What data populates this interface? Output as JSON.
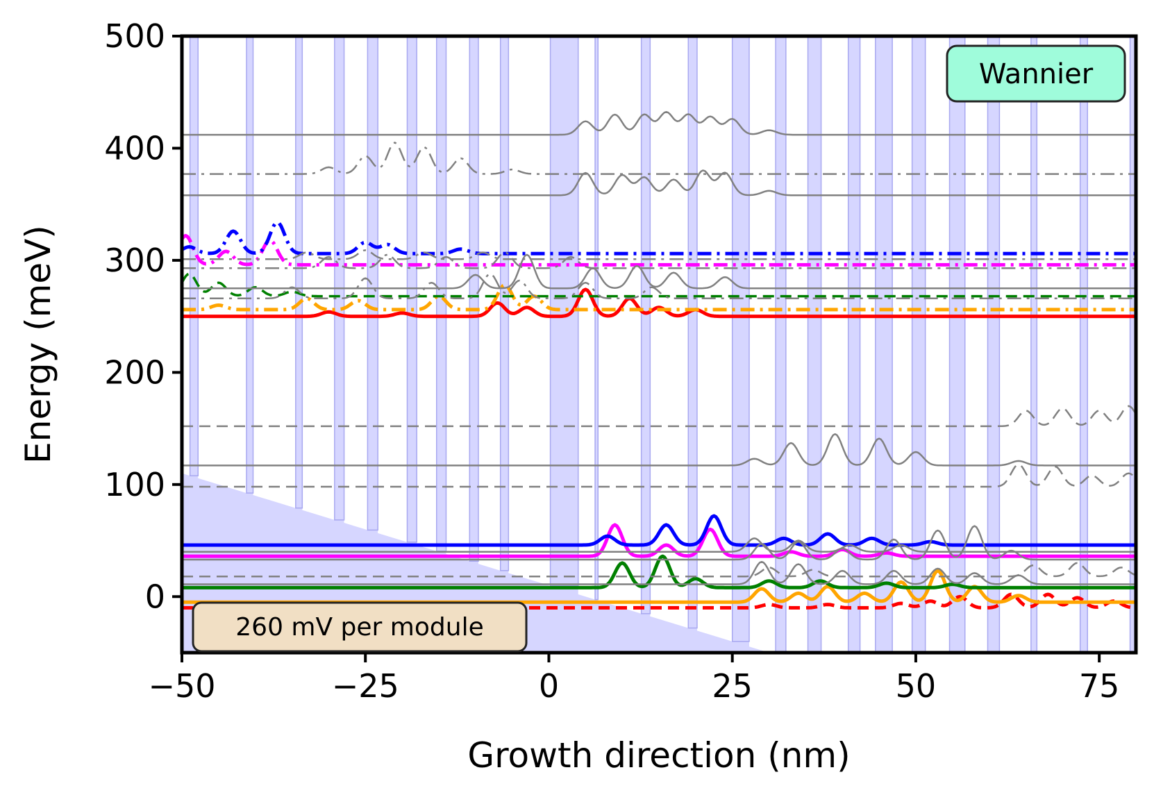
{
  "chart_data": {
    "type": "line",
    "title": "",
    "xlabel": "Growth direction (nm)",
    "ylabel": "Energy (meV)",
    "xlim": [
      -50,
      80
    ],
    "ylim": [
      -50,
      500
    ],
    "xticks": [
      -50,
      -25,
      0,
      25,
      50,
      75
    ],
    "yticks": [
      0,
      100,
      200,
      300,
      400,
      500
    ],
    "xtick_labels": [
      "−50",
      "−25",
      "0",
      "25",
      "50",
      "75"
    ],
    "ytick_labels": [
      "0",
      "100",
      "200",
      "300",
      "400",
      "500"
    ],
    "grid": false,
    "potential_profile": {
      "color": "#d6d6ff",
      "edge_color": "#a8a8f0",
      "field_meV_per_nm": -2.0,
      "barrier_height_meV": 60,
      "barriers": [
        [
          -48.9,
          -47.8
        ],
        [
          -41.2,
          -40.3
        ],
        [
          -34.5,
          -33.6
        ],
        [
          -29.2,
          -27.9
        ],
        [
          -24.7,
          -23.3
        ],
        [
          -19.3,
          -18.0
        ],
        [
          -15.3,
          -14.0
        ],
        [
          -10.8,
          -9.6
        ],
        [
          -6.6,
          -5.5
        ],
        [
          0.2,
          4.0
        ],
        [
          6.3,
          6.7
        ],
        [
          12.6,
          13.8
        ],
        [
          19.0,
          20.2
        ],
        [
          25.0,
          27.3
        ],
        [
          30.9,
          32.3
        ],
        [
          35.3,
          37.1
        ],
        [
          40.8,
          42.4
        ],
        [
          44.5,
          46.8
        ],
        [
          49.5,
          51.3
        ],
        [
          54.6,
          56.7
        ],
        [
          59.8,
          61.4
        ],
        [
          65.7,
          66.5
        ],
        [
          72.4,
          73.4
        ],
        [
          79.2,
          80
        ]
      ]
    },
    "series": [
      {
        "name": "red-lower",
        "color": "#ff0000",
        "style": "dashed",
        "width": 5,
        "level": -10,
        "lobes": [
          [
            30,
            3
          ],
          [
            38,
            3
          ],
          [
            48,
            4
          ],
          [
            52,
            6
          ],
          [
            56,
            10
          ],
          [
            63,
            12
          ],
          [
            68,
            12
          ],
          [
            72,
            9
          ],
          [
            77,
            6
          ]
        ]
      },
      {
        "name": "orange-lower",
        "color": "#ffa500",
        "style": "solid",
        "width": 5,
        "level": -5,
        "lobes": [
          [
            29,
            12
          ],
          [
            34,
            8
          ],
          [
            38,
            14
          ],
          [
            43,
            8
          ],
          [
            48,
            18
          ],
          [
            53,
            28
          ],
          [
            58,
            14
          ],
          [
            64,
            6
          ]
        ]
      },
      {
        "name": "green-lower",
        "color": "#008000",
        "style": "solid",
        "width": 5,
        "level": 8,
        "lobes": [
          [
            10,
            22
          ],
          [
            15.5,
            28
          ],
          [
            20,
            8
          ],
          [
            30,
            6
          ],
          [
            37,
            6
          ],
          [
            46,
            4
          ],
          [
            55,
            3
          ]
        ]
      },
      {
        "name": "magenta-lower",
        "color": "#ff00ff",
        "style": "solid",
        "width": 5,
        "level": 36,
        "lobes": [
          [
            9,
            28
          ],
          [
            16,
            10
          ],
          [
            22,
            24
          ],
          [
            33,
            4
          ],
          [
            40,
            6
          ],
          [
            46,
            3
          ]
        ]
      },
      {
        "name": "blue-lower",
        "color": "#0000ff",
        "style": "solid",
        "width": 5,
        "level": 46,
        "lobes": [
          [
            8,
            8
          ],
          [
            16,
            18
          ],
          [
            22.5,
            26
          ],
          [
            32,
            6
          ],
          [
            38,
            10
          ],
          [
            44,
            6
          ],
          [
            52,
            3
          ]
        ]
      },
      {
        "name": "gray-low-1",
        "color": "#808080",
        "style": "solid",
        "width": 2.5,
        "level": 11,
        "lobes": [
          [
            29,
            20
          ],
          [
            34,
            18
          ],
          [
            40,
            12
          ],
          [
            47,
            12
          ],
          [
            53,
            14
          ],
          [
            58,
            10
          ],
          [
            64,
            8
          ]
        ]
      },
      {
        "name": "gray-low-2",
        "color": "#808080",
        "style": "dashed",
        "width": 2.5,
        "level": 18,
        "lobes": [
          [
            30,
            8
          ],
          [
            36,
            6
          ],
          [
            66,
            10
          ],
          [
            72,
            12
          ],
          [
            78,
            8
          ]
        ]
      },
      {
        "name": "gray-low-3",
        "color": "#808080",
        "style": "solid",
        "width": 2.5,
        "level": 33,
        "lobes": [
          [
            29,
            14
          ],
          [
            34,
            16
          ],
          [
            40,
            10
          ],
          [
            47,
            18
          ],
          [
            53,
            26
          ],
          [
            58,
            30
          ],
          [
            63,
            8
          ]
        ]
      },
      {
        "name": "gray-low-4",
        "color": "#808080",
        "style": "solid",
        "width": 2.5,
        "level": 40,
        "lobes": [
          [
            28,
            12
          ],
          [
            34,
            10
          ],
          [
            41,
            6
          ],
          [
            48,
            6
          ]
        ]
      },
      {
        "name": "gray-mid-1",
        "color": "#808080",
        "style": "dashed",
        "width": 2.5,
        "level": 98,
        "lobes": [
          [
            64,
            20
          ],
          [
            69,
            18
          ],
          [
            74,
            10
          ],
          [
            79,
            12
          ]
        ]
      },
      {
        "name": "gray-mid-2",
        "color": "#808080",
        "style": "solid",
        "width": 2.5,
        "level": 117,
        "lobes": [
          [
            28,
            6
          ],
          [
            33,
            20
          ],
          [
            39,
            28
          ],
          [
            45,
            24
          ],
          [
            50,
            12
          ],
          [
            64,
            4
          ]
        ]
      },
      {
        "name": "gray-mid-3",
        "color": "#808080",
        "style": "dashed",
        "width": 2.5,
        "level": 152,
        "lobes": [
          [
            65,
            14
          ],
          [
            70,
            16
          ],
          [
            75,
            14
          ],
          [
            79,
            18
          ]
        ]
      },
      {
        "name": "red-upper",
        "color": "#ff0000",
        "style": "solid",
        "width": 5,
        "level": 250,
        "lobes": [
          [
            -30,
            4
          ],
          [
            -20,
            3
          ],
          [
            -7,
            12
          ],
          [
            -3,
            8
          ],
          [
            5,
            24
          ],
          [
            11,
            16
          ],
          [
            15,
            8
          ],
          [
            20,
            6
          ]
        ]
      },
      {
        "name": "orange-upper",
        "color": "#ffa500",
        "style": "dashdot",
        "width": 5,
        "level": 256,
        "lobes": [
          [
            -45,
            4
          ],
          [
            -33,
            10
          ],
          [
            -26,
            8
          ],
          [
            -15,
            12
          ],
          [
            -6,
            22
          ],
          [
            -2,
            12
          ]
        ]
      },
      {
        "name": "green-upper",
        "color": "#008000",
        "style": "dashed",
        "width": 3.5,
        "level": 268,
        "lobes": [
          [
            -49,
            20
          ],
          [
            -45,
            12
          ],
          [
            -40,
            8
          ],
          [
            -35,
            4
          ]
        ]
      },
      {
        "name": "magenta-upper",
        "color": "#ff00ff",
        "style": "dashdot",
        "width": 5,
        "level": 296,
        "lobes": [
          [
            -49.5,
            26
          ],
          [
            -44,
            12
          ],
          [
            -38,
            22
          ]
        ]
      },
      {
        "name": "blue-upper",
        "color": "#0000ff",
        "style": "dashdot",
        "width": 5,
        "level": 306,
        "lobes": [
          [
            -49,
            6
          ],
          [
            -43,
            20
          ],
          [
            -37,
            28
          ],
          [
            -25,
            10
          ],
          [
            -22,
            8
          ],
          [
            -12,
            4
          ]
        ]
      },
      {
        "name": "gray-high-1",
        "color": "#808080",
        "style": "dashdot",
        "width": 2.5,
        "level": 266,
        "lobes": [
          [
            -35,
            10
          ],
          [
            -25,
            18
          ],
          [
            -16,
            14
          ],
          [
            -8,
            22
          ],
          [
            -4,
            16
          ],
          [
            5,
            14
          ],
          [
            14,
            10
          ]
        ]
      },
      {
        "name": "gray-high-2",
        "color": "#808080",
        "style": "solid",
        "width": 2.5,
        "level": 275,
        "lobes": [
          [
            -10,
            12
          ],
          [
            -3,
            30
          ],
          [
            6,
            18
          ],
          [
            12,
            20
          ],
          [
            17,
            14
          ],
          [
            24,
            10
          ]
        ]
      },
      {
        "name": "gray-high-3",
        "color": "#808080",
        "style": "dashdot",
        "width": 2.5,
        "level": 293,
        "lobes": [
          [
            -30,
            10
          ],
          [
            -22,
            12
          ],
          [
            -14,
            10
          ],
          [
            -6,
            14
          ],
          [
            3,
            10
          ]
        ]
      },
      {
        "name": "gray-high-4",
        "color": "#808080",
        "style": "dashdot",
        "width": 2.5,
        "level": 301,
        "lobes": [
          [
            -33,
            6
          ],
          [
            -25,
            8
          ],
          [
            -17,
            6
          ],
          [
            -9,
            6
          ]
        ]
      },
      {
        "name": "gray-top-1",
        "color": "#808080",
        "style": "solid",
        "width": 2.5,
        "level": 358,
        "lobes": [
          [
            5,
            20
          ],
          [
            10,
            18
          ],
          [
            13,
            16
          ],
          [
            17,
            14
          ],
          [
            21,
            22
          ],
          [
            24,
            20
          ],
          [
            30,
            4
          ]
        ]
      },
      {
        "name": "gray-top-2",
        "color": "#808080",
        "style": "dashdot",
        "width": 2.5,
        "level": 377,
        "lobes": [
          [
            -30,
            6
          ],
          [
            -25,
            16
          ],
          [
            -21,
            28
          ],
          [
            -17,
            24
          ],
          [
            -12,
            14
          ],
          [
            -5,
            4
          ]
        ]
      },
      {
        "name": "gray-top-3",
        "color": "#808080",
        "style": "solid",
        "width": 2.5,
        "level": 412,
        "lobes": [
          [
            5,
            12
          ],
          [
            9,
            18
          ],
          [
            13,
            18
          ],
          [
            16,
            20
          ],
          [
            19,
            18
          ],
          [
            22,
            16
          ],
          [
            25,
            14
          ],
          [
            30,
            4
          ]
        ]
      }
    ]
  },
  "badges": {
    "method": "Wannier",
    "module_bias": "260 mV per module"
  },
  "colors": {
    "method_badge_fill": "#9ffcdb",
    "module_badge_fill": "#f1dfc4"
  }
}
